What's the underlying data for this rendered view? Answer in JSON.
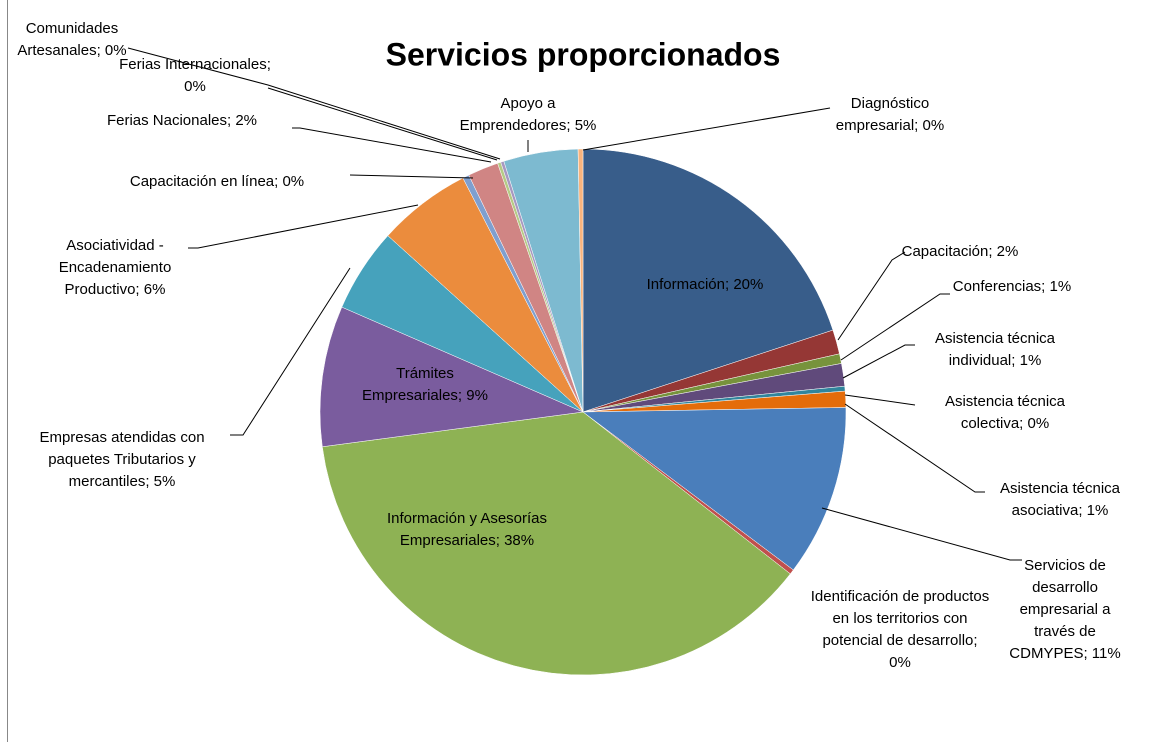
{
  "chart_data": {
    "type": "pie",
    "title": "Servicios proporcionados",
    "values": [
      20.1,
      1.5,
      0.6,
      1.4,
      0.3,
      1.0,
      10.6,
      0.3,
      37.6,
      8.7,
      5.2,
      5.8,
      0.4,
      1.9,
      0.2,
      0.2,
      4.6,
      0.3
    ],
    "value_labels": [
      "Información; 20%",
      "Capacitación; 2%",
      "Conferencias; 1%",
      "Asistencia técnica individual; 1%",
      "Asistencia técnica colectiva; 0%",
      "Asistencia técnica asociativa; 1%",
      "Servicios de desarrollo empresarial a través de CDMYPES; 11%",
      "Identificación de productos en los territorios con potencial de desarrollo; 0%",
      "Información y Asesorías Empresariales; 38%",
      "Trámites Empresariales; 9%",
      "Empresas atendidas con paquetes Tributarios y mercantiles; 5%",
      "Asociatividad - Encadenamiento Productivo; 6%",
      "Capacitación en línea; 0%",
      "Ferias Nacionales; 2%",
      "Ferias Internacionales; 0%",
      "Comunidades Artesanales; 0%",
      "Apoyo a Emprendedores; 5%",
      "Diagnóstico empresarial; 0%"
    ],
    "colors": [
      "#385D8A",
      "#953735",
      "#77933C",
      "#604A7B",
      "#31859C",
      "#E46C0A",
      "#4A7EBB",
      "#C0504D",
      "#8EB254",
      "#7A5C9E",
      "#46A2BC",
      "#EB8C3D",
      "#7F9FCF",
      "#D08584",
      "#B5CB86",
      "#A899C0",
      "#7DBAD0",
      "#F9B47E"
    ]
  }
}
